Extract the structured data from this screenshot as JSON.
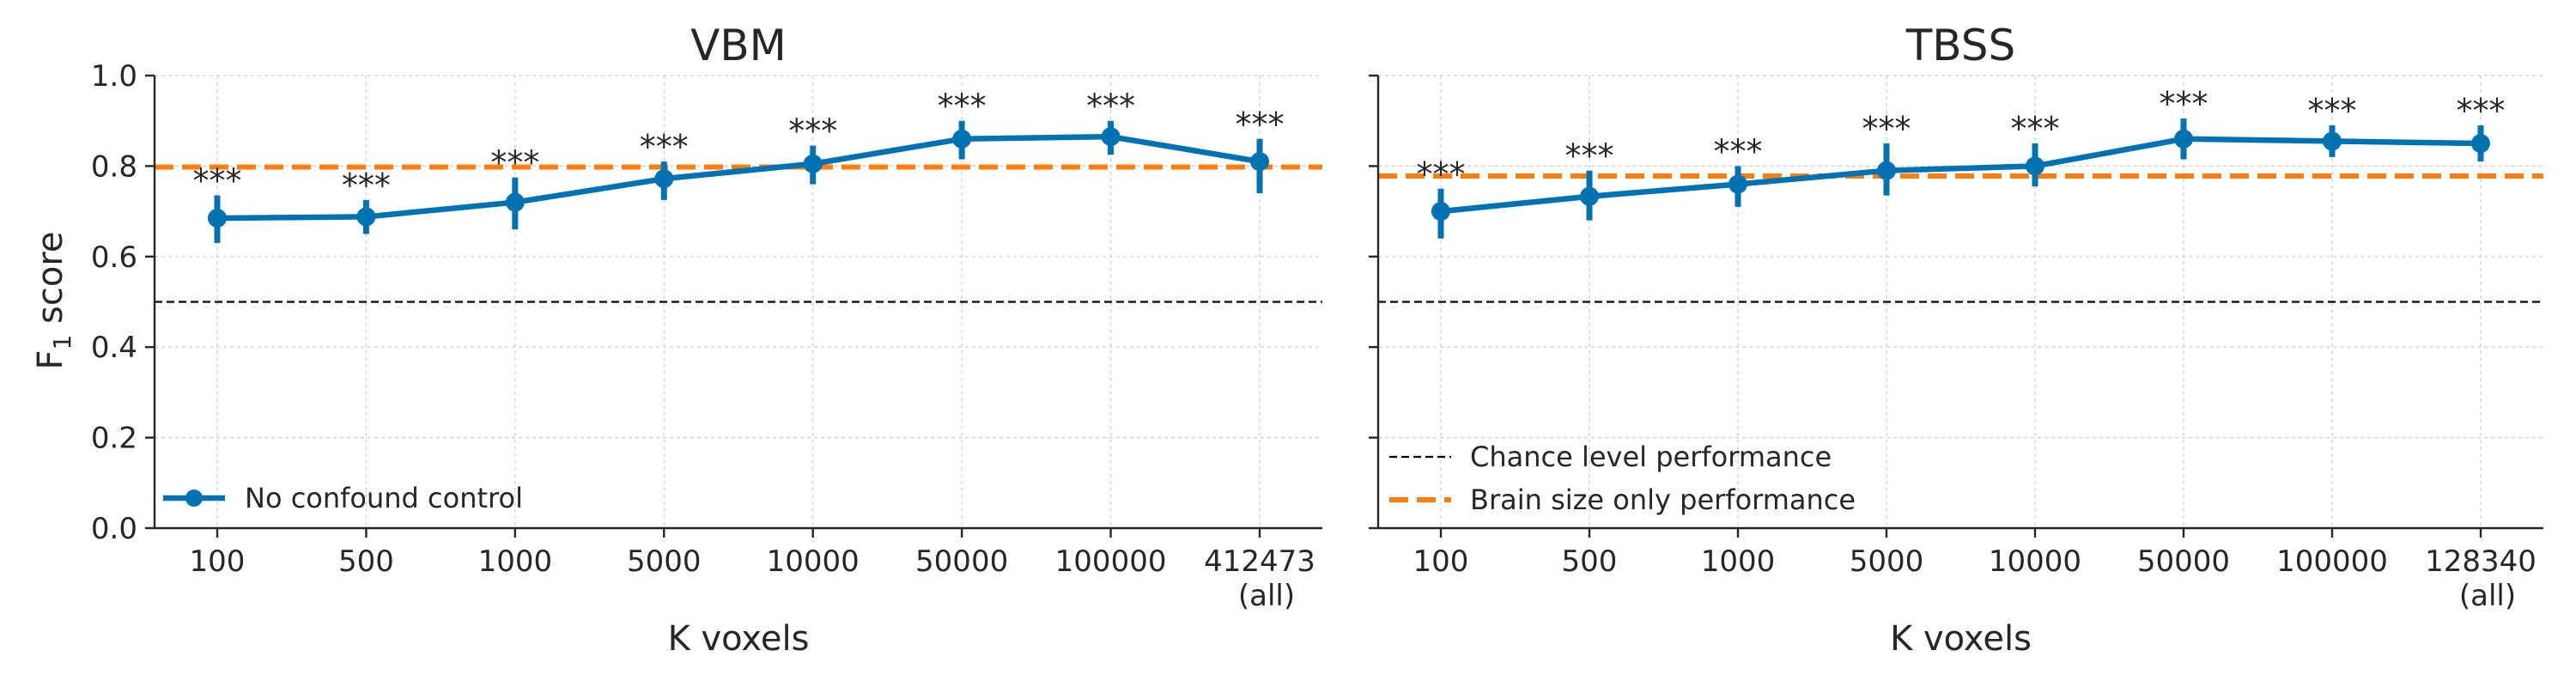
{
  "chart_data": [
    {
      "type": "line",
      "title": "VBM",
      "xlabel": "K voxels",
      "ylabel": "F₁ score",
      "ylim": [
        0,
        1
      ],
      "yticks": [
        "0.0",
        "0.2",
        "0.4",
        "0.6",
        "0.8",
        "1.0"
      ],
      "categories": [
        "100",
        "500",
        "1000",
        "5000",
        "10000",
        "50000",
        "100000",
        "412473"
      ],
      "category_sublabels": [
        "",
        "",
        "",
        "",
        "",
        "",
        "",
        "(all)"
      ],
      "series": [
        {
          "name": "No confound control",
          "color": "#0072b2",
          "values": [
            0.685,
            0.688,
            0.72,
            0.772,
            0.805,
            0.86,
            0.865,
            0.81
          ],
          "ci_low": [
            0.63,
            0.65,
            0.66,
            0.725,
            0.76,
            0.815,
            0.825,
            0.74
          ],
          "ci_high": [
            0.735,
            0.725,
            0.775,
            0.81,
            0.845,
            0.9,
            0.9,
            0.86
          ],
          "annotations": [
            "***",
            "***",
            "***",
            "***",
            "***",
            "***",
            "***",
            "***"
          ]
        }
      ],
      "chance_level": 0.5,
      "brain_size_only": 0.798,
      "legend": [
        "No confound control"
      ],
      "legend_position": "lower-left",
      "grid": true
    },
    {
      "type": "line",
      "title": "TBSS",
      "xlabel": "K voxels",
      "ylabel": "",
      "ylim": [
        0,
        1
      ],
      "categories": [
        "100",
        "500",
        "1000",
        "5000",
        "10000",
        "50000",
        "100000",
        "128340"
      ],
      "category_sublabels": [
        "",
        "",
        "",
        "",
        "",
        "",
        "",
        "(all)"
      ],
      "series": [
        {
          "name": "No confound control",
          "color": "#0072b2",
          "values": [
            0.7,
            0.733,
            0.76,
            0.79,
            0.8,
            0.86,
            0.855,
            0.85
          ],
          "ci_low": [
            0.64,
            0.68,
            0.71,
            0.735,
            0.755,
            0.815,
            0.82,
            0.81
          ],
          "ci_high": [
            0.75,
            0.79,
            0.8,
            0.85,
            0.85,
            0.905,
            0.89,
            0.89
          ],
          "annotations": [
            "***",
            "***",
            "***",
            "***",
            "***",
            "***",
            "***",
            "***"
          ]
        }
      ],
      "chance_level": 0.5,
      "brain_size_only": 0.778,
      "legend": [
        "Chance level performance",
        "Brain size only performance"
      ],
      "legend_position": "lower-left",
      "grid": true
    }
  ],
  "colors": {
    "series": "#0072b2",
    "brain_size": "#ff7f0e",
    "chance": "#000000"
  }
}
